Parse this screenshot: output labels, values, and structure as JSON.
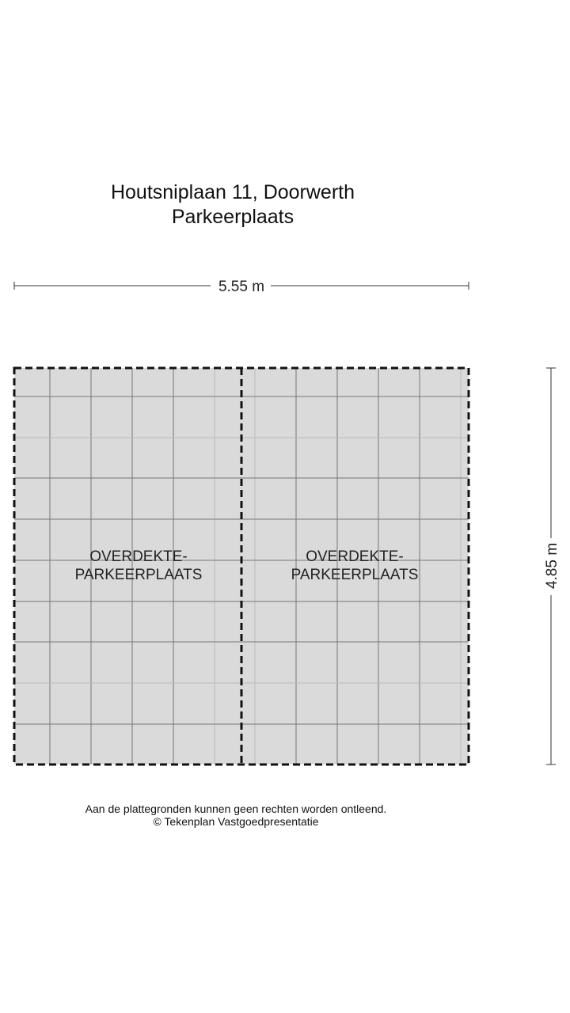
{
  "title": {
    "address": "Houtsniplaan 11, Doorwerth",
    "floor": "Parkeerplaats"
  },
  "dimensions": {
    "width": "5.55 m",
    "height": "4.85 m"
  },
  "rooms": [
    {
      "line1": "OVERDEKTE-",
      "line2": "PARKEERPLAATS"
    },
    {
      "line1": "OVERDEKTE-",
      "line2": "PARKEERPLAATS"
    }
  ],
  "footer": {
    "disclaimer": "Aan de plattegronden kunnen geen rechten worden ontleend.",
    "copyright": "© Tekenplan Vastgoedpresentatie"
  },
  "colors": {
    "floor": "#dadada",
    "wall": "#111111"
  }
}
